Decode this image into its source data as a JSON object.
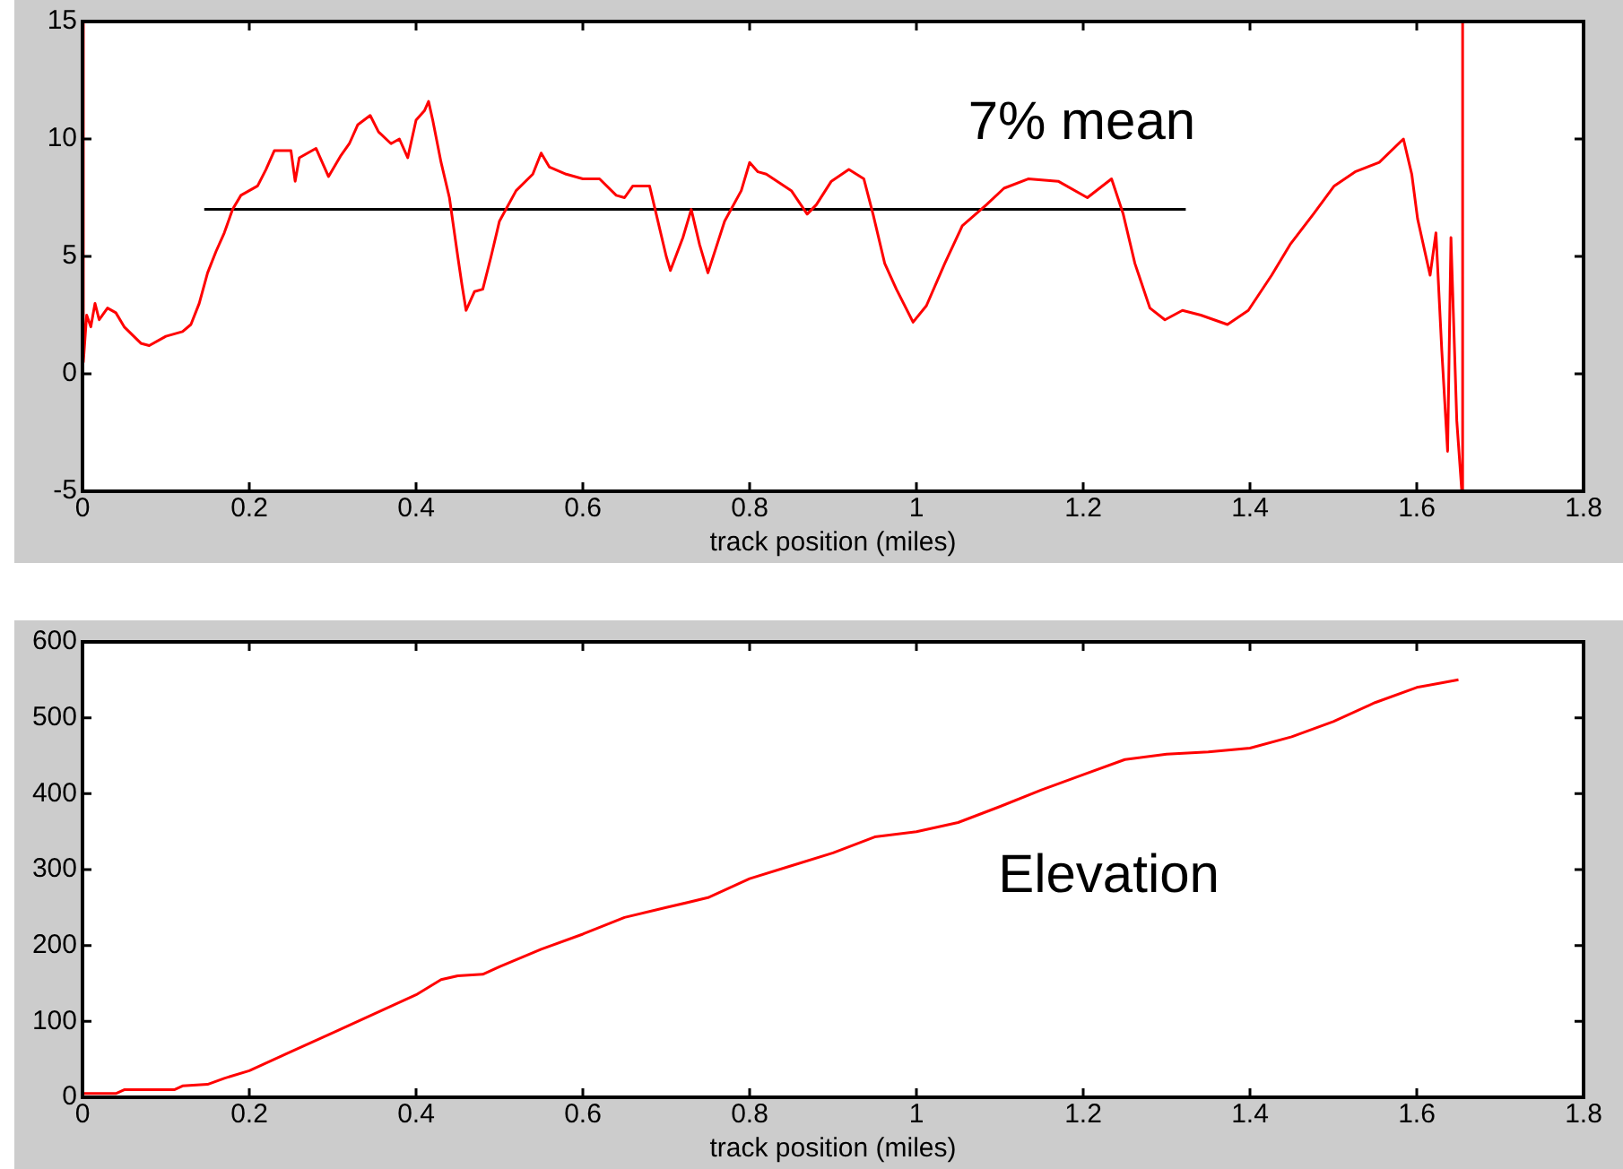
{
  "chart_data": [
    {
      "type": "line",
      "xlabel": "track position (miles)",
      "xlim": [
        0,
        1.8
      ],
      "xticks": [
        0,
        0.2,
        0.4,
        0.6,
        0.8,
        1,
        1.2,
        1.4,
        1.6,
        1.8
      ],
      "ylim": [
        -5,
        15
      ],
      "yticks": [
        -5,
        0,
        5,
        10,
        15
      ],
      "grid": false,
      "legend": false,
      "series": [
        {
          "color": "#ff0000",
          "x": [
            0,
            0.001,
            0.005,
            0.01,
            0.015,
            0.02,
            0.03,
            0.04,
            0.05,
            0.07,
            0.08,
            0.1,
            0.12,
            0.13,
            0.14,
            0.15,
            0.16,
            0.17,
            0.18,
            0.19,
            0.21,
            0.22,
            0.23,
            0.25,
            0.255,
            0.26,
            0.28,
            0.295,
            0.31,
            0.32,
            0.33,
            0.345,
            0.355,
            0.37,
            0.38,
            0.39,
            0.4,
            0.41,
            0.415,
            0.42,
            0.43,
            0.44,
            0.45,
            0.455,
            0.46,
            0.47,
            0.48,
            0.49,
            0.5,
            0.52,
            0.54,
            0.55,
            0.56,
            0.58,
            0.6,
            0.62,
            0.64,
            0.65,
            0.66,
            0.68,
            0.69,
            0.7,
            0.705,
            0.72,
            0.73,
            0.74,
            0.75,
            0.77,
            0.79,
            0.8,
            0.81,
            0.82,
            0.85,
            0.869,
            0.88,
            0.898,
            0.919,
            0.937,
            0.948,
            0.962,
            0.976,
            0.996,
            1.012,
            1.034,
            1.055,
            1.084,
            1.105,
            1.134,
            1.17,
            1.205,
            1.234,
            1.248,
            1.262,
            1.28,
            1.298,
            1.319,
            1.341,
            1.373,
            1.398,
            1.426,
            1.448,
            1.476,
            1.501,
            1.526,
            1.555,
            1.584,
            1.594,
            1.601,
            1.616,
            1.623,
            1.63,
            1.637,
            1.641,
            1.648,
            1.654,
            1.655
          ],
          "values": [
            15,
            0.5,
            2.5,
            2.0,
            3.0,
            2.3,
            2.8,
            2.6,
            2.0,
            1.3,
            1.2,
            1.6,
            1.8,
            2.1,
            3.0,
            4.3,
            5.2,
            6.0,
            7.0,
            7.6,
            8.0,
            8.7,
            9.5,
            9.5,
            8.2,
            9.2,
            9.6,
            8.4,
            9.3,
            9.8,
            10.6,
            11.0,
            10.3,
            9.8,
            10.0,
            9.2,
            10.8,
            11.2,
            11.6,
            10.8,
            9.0,
            7.5,
            5.0,
            3.8,
            2.7,
            3.5,
            3.6,
            5.0,
            6.5,
            7.8,
            8.5,
            9.4,
            8.8,
            8.5,
            8.3,
            8.3,
            7.6,
            7.5,
            8.0,
            8.0,
            6.5,
            5.0,
            4.4,
            5.8,
            7.0,
            5.5,
            4.3,
            6.5,
            7.8,
            9.0,
            8.6,
            8.5,
            7.8,
            6.8,
            7.2,
            8.2,
            8.7,
            8.3,
            6.8,
            4.7,
            3.6,
            2.2,
            2.9,
            4.7,
            6.3,
            7.2,
            7.9,
            8.3,
            8.2,
            7.5,
            8.3,
            6.8,
            4.7,
            2.8,
            2.3,
            2.7,
            2.5,
            2.1,
            2.7,
            4.2,
            5.5,
            6.8,
            8.0,
            8.6,
            9.0,
            10.0,
            8.5,
            6.6,
            4.2,
            6.0,
            1.0,
            -3.3,
            5.8,
            -2.0,
            -5,
            15
          ]
        },
        {
          "color": "#000000",
          "x": [
            0.146,
            1.323
          ],
          "values": [
            7,
            7
          ]
        }
      ],
      "annotations": [
        "7% mean"
      ]
    },
    {
      "type": "line",
      "xlabel": "track position (miles)",
      "xlim": [
        0,
        1.8
      ],
      "xticks": [
        0,
        0.2,
        0.4,
        0.6,
        0.8,
        1,
        1.2,
        1.4,
        1.6,
        1.8
      ],
      "ylim": [
        0,
        600
      ],
      "yticks": [
        0,
        100,
        200,
        300,
        400,
        500,
        600
      ],
      "grid": false,
      "legend": false,
      "series": [
        {
          "color": "#ff0000",
          "x": [
            0,
            0.04,
            0.05,
            0.11,
            0.12,
            0.15,
            0.17,
            0.2,
            0.25,
            0.3,
            0.35,
            0.4,
            0.43,
            0.45,
            0.48,
            0.5,
            0.55,
            0.6,
            0.65,
            0.7,
            0.75,
            0.8,
            0.85,
            0.9,
            0.95,
            1.0,
            1.05,
            1.1,
            1.15,
            1.2,
            1.25,
            1.3,
            1.35,
            1.4,
            1.45,
            1.5,
            1.55,
            1.6,
            1.65
          ],
          "values": [
            5,
            5,
            10,
            10,
            15,
            17,
            25,
            35,
            60,
            85,
            110,
            135,
            155,
            160,
            162,
            172,
            195,
            215,
            237,
            250,
            263,
            288,
            305,
            322,
            343,
            350,
            362,
            383,
            405,
            425,
            445,
            452,
            455,
            460,
            475,
            495,
            520,
            540,
            550
          ]
        }
      ],
      "annotations": [
        "Elevation"
      ]
    }
  ]
}
